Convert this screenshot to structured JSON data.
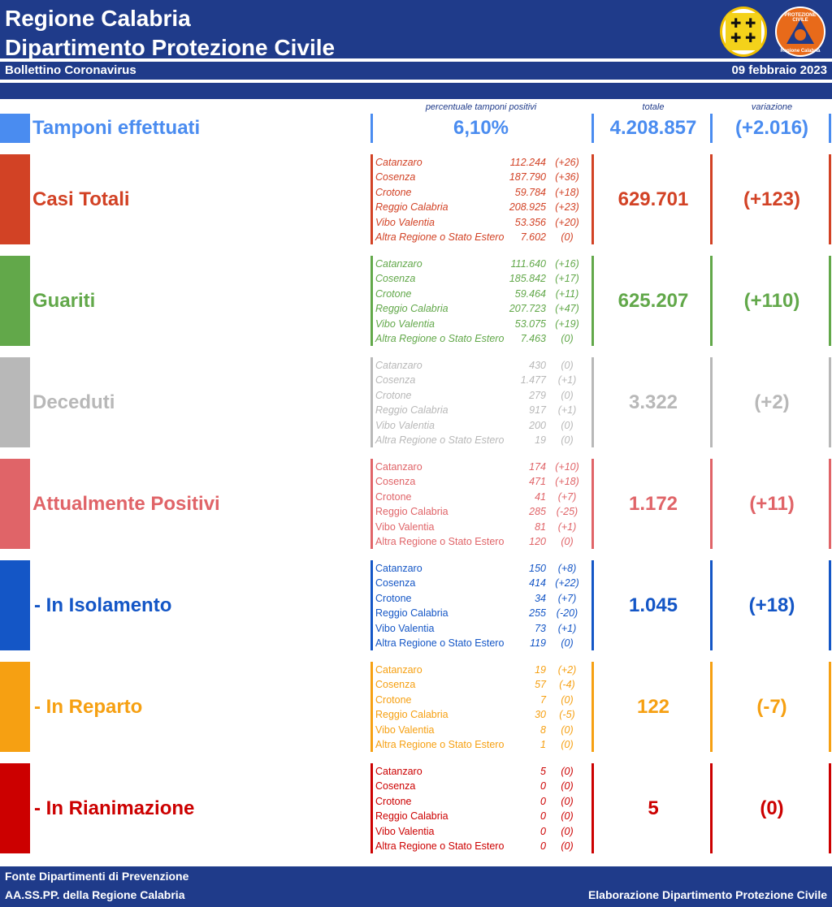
{
  "header": {
    "title_line1": "Regione Calabria",
    "title_line2": "Dipartimento Protezione Civile",
    "subtitle": "Bollettino Coronavirus",
    "date": "09 febbraio 2023",
    "logo_pc_text_top": "PROTEZIONE CIVILE",
    "logo_pc_text_bottom": "Regione Calabria"
  },
  "columns": {
    "percent_label": "percentuale tamponi positivi",
    "total_label": "totale",
    "variation_label": "variazione"
  },
  "tamponi": {
    "label": "Tamponi effettuati",
    "percent": "6,10%",
    "total": "4.208.857",
    "delta": "(+2.016)",
    "color": "#4a8cf0"
  },
  "sections": [
    {
      "label": "Casi Totali",
      "total": "629.701",
      "delta": "(+123)",
      "color": "#d24225",
      "rows": [
        {
          "name": "Catanzaro",
          "value": "112.244",
          "delta": "(+26)"
        },
        {
          "name": "Cosenza",
          "value": "187.790",
          "delta": "(+36)"
        },
        {
          "name": "Crotone",
          "value": "59.784",
          "delta": "(+18)"
        },
        {
          "name": "Reggio Calabria",
          "value": "208.925",
          "delta": "(+23)"
        },
        {
          "name": "Vibo Valentia",
          "value": "53.356",
          "delta": "(+20)"
        },
        {
          "name": "Altra Regione o Stato Estero",
          "value": "7.602",
          "delta": "(0)"
        }
      ]
    },
    {
      "label": "Guariti",
      "total": "625.207",
      "delta": "(+110)",
      "color": "#62a84a",
      "rows": [
        {
          "name": "Catanzaro",
          "value": "111.640",
          "delta": "(+16)"
        },
        {
          "name": "Cosenza",
          "value": "185.842",
          "delta": "(+17)"
        },
        {
          "name": "Crotone",
          "value": "59.464",
          "delta": "(+11)"
        },
        {
          "name": "Reggio Calabria",
          "value": "207.723",
          "delta": "(+47)"
        },
        {
          "name": "Vibo Valentia",
          "value": "53.075",
          "delta": "(+19)"
        },
        {
          "name": "Altra Regione o Stato Estero",
          "value": "7.463",
          "delta": "(0)"
        }
      ]
    },
    {
      "label": "Deceduti",
      "total": "3.322",
      "delta": "(+2)",
      "color": "#b8b8b8",
      "rows": [
        {
          "name": "Catanzaro",
          "value": "430",
          "delta": "(0)"
        },
        {
          "name": "Cosenza",
          "value": "1.477",
          "delta": "(+1)"
        },
        {
          "name": "Crotone",
          "value": "279",
          "delta": "(0)"
        },
        {
          "name": "Reggio Calabria",
          "value": "917",
          "delta": "(+1)"
        },
        {
          "name": "Vibo Valentia",
          "value": "200",
          "delta": "(0)"
        },
        {
          "name": "Altra Regione o Stato Estero",
          "value": "19",
          "delta": "(0)"
        }
      ]
    },
    {
      "label": "Attualmente Positivi",
      "total": "1.172",
      "delta": "(+11)",
      "color": "#e06468",
      "rows": [
        {
          "name": "Catanzaro",
          "value": "174",
          "delta": "(+10)"
        },
        {
          "name": "Cosenza",
          "value": "471",
          "delta": "(+18)"
        },
        {
          "name": "Crotone",
          "value": "41",
          "delta": "(+7)"
        },
        {
          "name": "Reggio Calabria",
          "value": "285",
          "delta": "(-25)"
        },
        {
          "name": "Vibo Valentia",
          "value": "81",
          "delta": "(+1)"
        },
        {
          "name": "Altra Regione o Stato Estero",
          "value": "120",
          "delta": "(0)"
        }
      ]
    },
    {
      "label": " - In Isolamento",
      "total": "1.045",
      "delta": "(+18)",
      "color": "#1456c6",
      "rows": [
        {
          "name": "Catanzaro",
          "value": "150",
          "delta": "(+8)"
        },
        {
          "name": "Cosenza",
          "value": "414",
          "delta": "(+22)"
        },
        {
          "name": "Crotone",
          "value": "34",
          "delta": "(+7)"
        },
        {
          "name": "Reggio Calabria",
          "value": "255",
          "delta": "(-20)"
        },
        {
          "name": "Vibo Valentia",
          "value": "73",
          "delta": "(+1)"
        },
        {
          "name": "Altra Regione o Stato Estero",
          "value": "119",
          "delta": "(0)"
        }
      ]
    },
    {
      "label": " - In Reparto",
      "total": "122",
      "delta": "(-7)",
      "color": "#f6a012",
      "rows": [
        {
          "name": "Catanzaro",
          "value": "19",
          "delta": "(+2)"
        },
        {
          "name": "Cosenza",
          "value": "57",
          "delta": "(-4)"
        },
        {
          "name": "Crotone",
          "value": "7",
          "delta": "(0)"
        },
        {
          "name": "Reggio Calabria",
          "value": "30",
          "delta": "(-5)"
        },
        {
          "name": "Vibo Valentia",
          "value": "8",
          "delta": "(0)"
        },
        {
          "name": "Altra Regione o Stato Estero",
          "value": "1",
          "delta": "(0)"
        }
      ]
    },
    {
      "label": " - In Rianimazione",
      "total": "5",
      "delta": "(0)",
      "color": "#cc0000",
      "rows": [
        {
          "name": "Catanzaro",
          "value": "5",
          "delta": "(0)"
        },
        {
          "name": "Cosenza",
          "value": "0",
          "delta": "(0)"
        },
        {
          "name": "Crotone",
          "value": "0",
          "delta": "(0)"
        },
        {
          "name": "Reggio Calabria",
          "value": "0",
          "delta": "(0)"
        },
        {
          "name": "Vibo Valentia",
          "value": "0",
          "delta": "(0)"
        },
        {
          "name": "Altra Regione o Stato Estero",
          "value": "0",
          "delta": "(0)"
        }
      ]
    }
  ],
  "footer": {
    "source_line1": "Fonte Dipartimenti di Prevenzione",
    "source_line2": "AA.SS.PP.  della Regione Calabria",
    "credit": "Elaborazione Dipartimento Protezione Civile"
  }
}
